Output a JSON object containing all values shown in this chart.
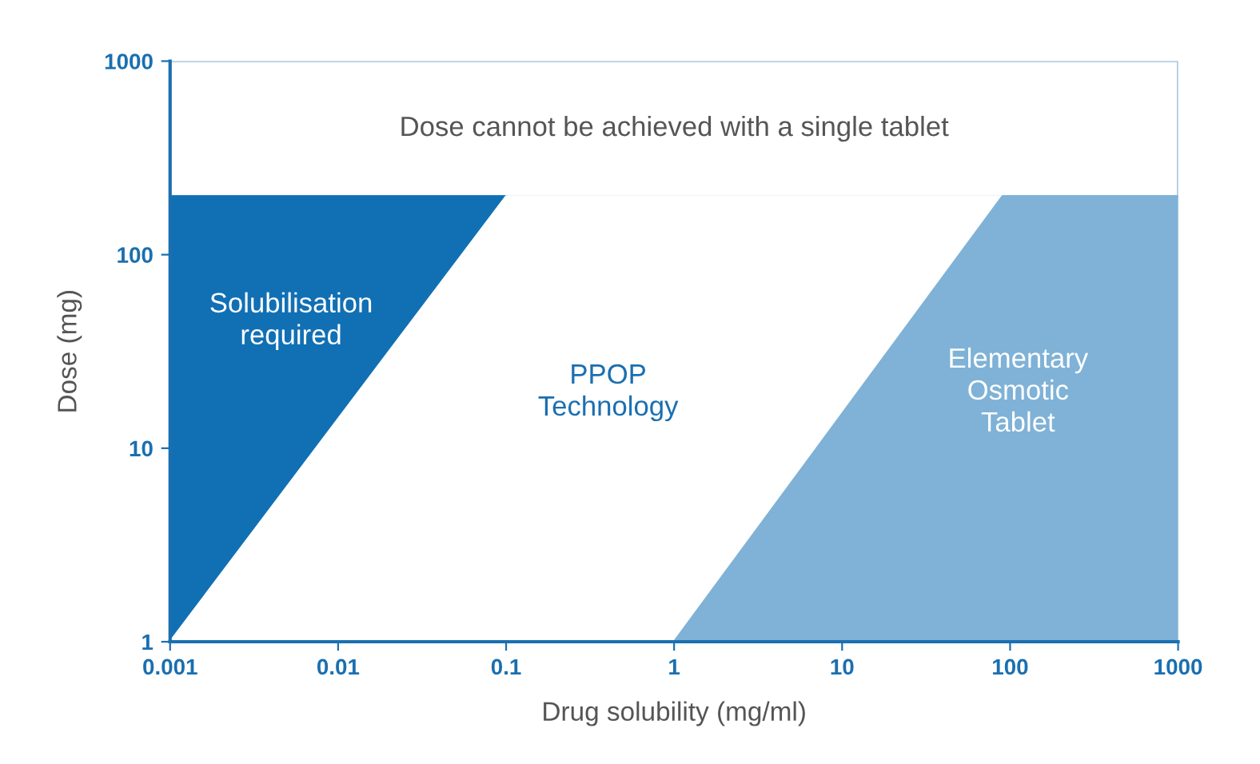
{
  "chart_data": {
    "type": "area",
    "xlabel": "Drug solubility (mg/ml)",
    "ylabel": "Dose (mg)",
    "log": "xy",
    "xlim": [
      0.001,
      1000
    ],
    "xticks": [
      0.001,
      0.01,
      0.1,
      1,
      10,
      100,
      1000
    ],
    "ylim": [
      1,
      1000
    ],
    "yticks": [
      1,
      10,
      100,
      1000
    ],
    "grid": false,
    "legend": false,
    "series": [
      {
        "name": "Solubilisation required",
        "color": "#1170b4",
        "x": [
          0.001,
          0.1
        ],
        "values": [
          200,
          200
        ]
      },
      {
        "name": "PPOP Technology",
        "color": "#ffffff",
        "x": [
          0.001,
          0.1,
          90
        ],
        "values": [
          1,
          200,
          200
        ]
      },
      {
        "name": "Elementary Osmotic Tablet",
        "color": "#7fb2d6",
        "x": [
          1,
          90,
          1000
        ],
        "values": [
          1,
          200,
          200
        ]
      }
    ],
    "bands": [
      {
        "axis": "y",
        "from": 200,
        "to": 1000,
        "label": "Dose cannot be achieved with a single tablet",
        "color": "#ffffff"
      }
    ]
  }
}
